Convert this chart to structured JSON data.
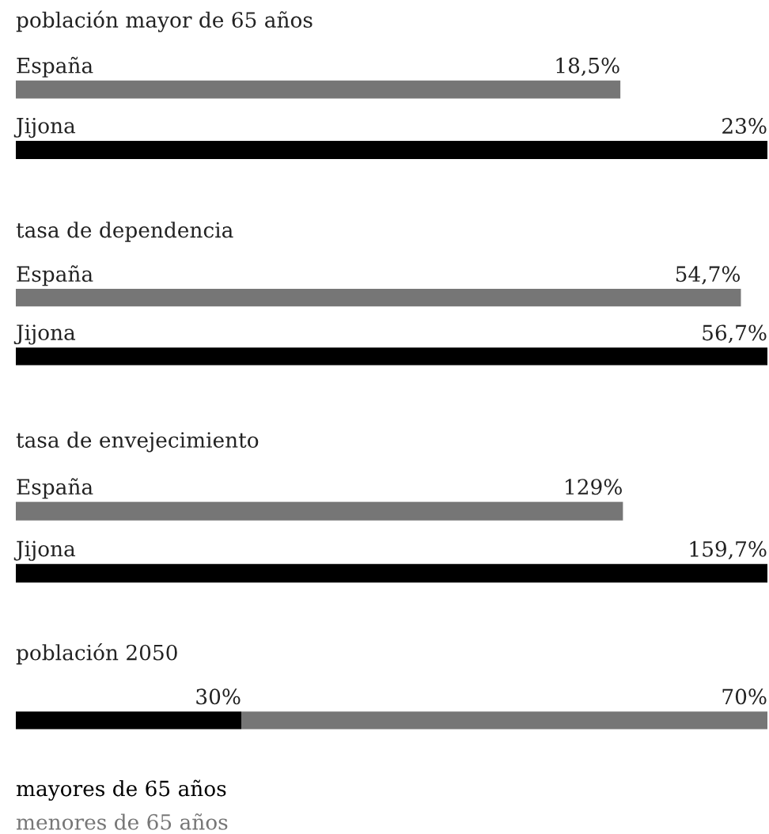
{
  "chart_data": [
    {
      "type": "bar",
      "orientation": "horizontal",
      "title": "población mayor de 65 años",
      "categories": [
        "España",
        "Jijona"
      ],
      "series": [
        {
          "colors": [
            "#767676",
            "#000000"
          ],
          "values": [
            18.5,
            23
          ],
          "value_labels": [
            "18,5%",
            "23%"
          ]
        }
      ]
    },
    {
      "type": "bar",
      "orientation": "horizontal",
      "title": "tasa de dependencia",
      "categories": [
        "España",
        "Jijona"
      ],
      "series": [
        {
          "colors": [
            "#767676",
            "#000000"
          ],
          "values": [
            54.7,
            56.7
          ],
          "value_labels": [
            "54,7%",
            "56,7%"
          ]
        }
      ]
    },
    {
      "type": "bar",
      "orientation": "horizontal",
      "title": "tasa de envejecimiento",
      "categories": [
        "España",
        "Jijona"
      ],
      "series": [
        {
          "colors": [
            "#767676",
            "#000000"
          ],
          "values": [
            129,
            159.7
          ],
          "value_labels": [
            "129%",
            "159,7%"
          ]
        }
      ]
    },
    {
      "type": "bar",
      "orientation": "horizontal",
      "stacked": true,
      "title": "población 2050",
      "categories": [
        null
      ],
      "legend": "bottom",
      "series": [
        {
          "name": "mayores de 65 años",
          "color": "#000000",
          "values": [
            30
          ],
          "value_labels": [
            "30%"
          ]
        },
        {
          "name": "menores de 65 años",
          "color": "#767676",
          "values": [
            70
          ],
          "value_labels": [
            "70%"
          ]
        }
      ]
    }
  ]
}
